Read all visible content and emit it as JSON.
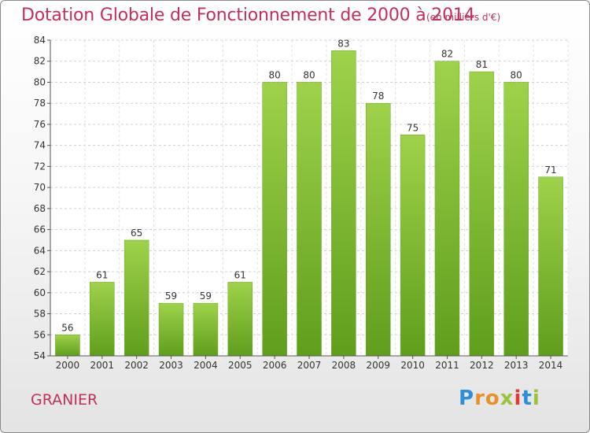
{
  "chart_data": {
    "type": "bar",
    "title": "Dotation Globale de Fonctionnement de 2000 à 2014",
    "subtitle": "(en milliers d'€)",
    "categories": [
      "2000",
      "2001",
      "2002",
      "2003",
      "2004",
      "2005",
      "2006",
      "2007",
      "2008",
      "2009",
      "2010",
      "2011",
      "2012",
      "2013",
      "2014"
    ],
    "values": [
      56,
      61,
      65,
      59,
      59,
      61,
      80,
      80,
      83,
      78,
      75,
      82,
      81,
      80,
      71
    ],
    "ylim": [
      54,
      84
    ],
    "yticks": [
      54,
      56,
      58,
      60,
      62,
      64,
      66,
      68,
      70,
      72,
      74,
      76,
      78,
      80,
      82,
      84
    ],
    "grid": true,
    "bar_color": "#8cc63f"
  },
  "commune": "GRANIER",
  "logo_text": "Proxiti"
}
